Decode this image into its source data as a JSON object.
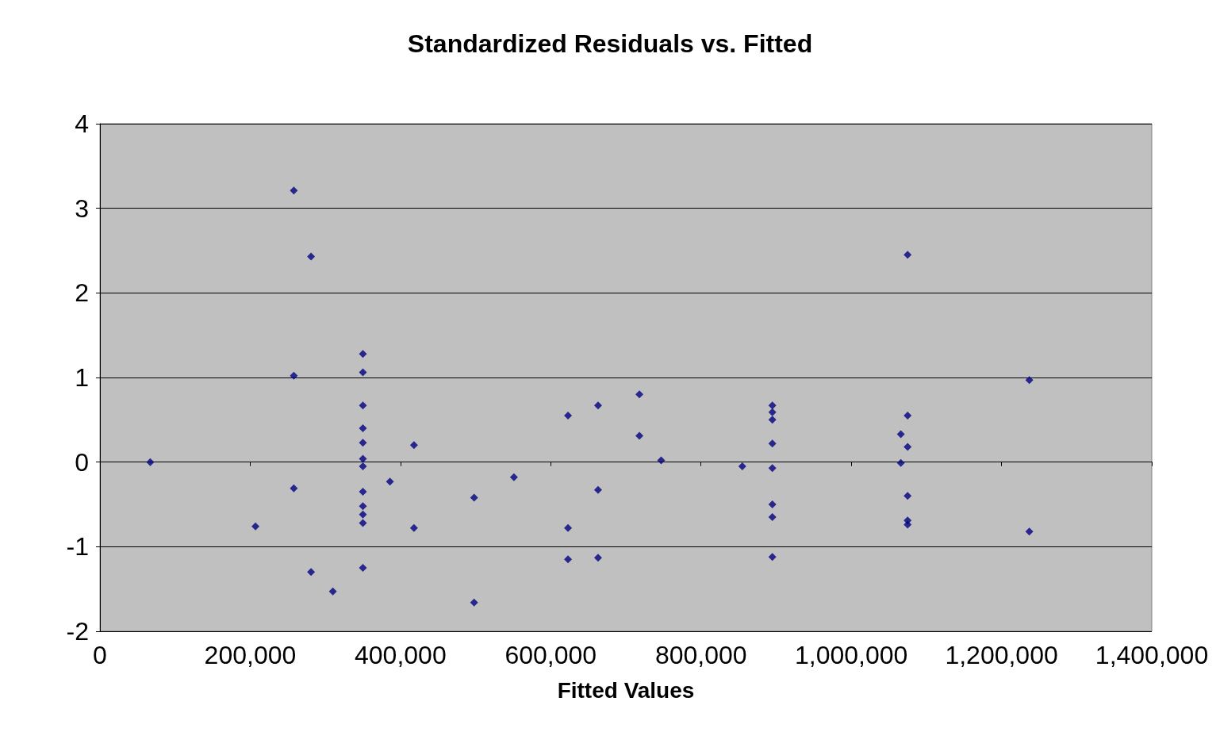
{
  "chart_data": {
    "type": "scatter",
    "title": "Standardized Residuals vs. Fitted",
    "xlabel": "Fitted Values",
    "x": [
      67000,
      207000,
      258000,
      258000,
      258000,
      281000,
      281000,
      310000,
      350000,
      350000,
      350000,
      350000,
      350000,
      350000,
      350000,
      350000,
      350000,
      350000,
      350000,
      350000,
      386000,
      418000,
      418000,
      498000,
      498000,
      551000,
      623000,
      623000,
      623000,
      663000,
      663000,
      663000,
      718000,
      718000,
      747000,
      855000,
      895000,
      895000,
      895000,
      895000,
      895000,
      895000,
      895000,
      895000,
      1066000,
      1066000,
      1075000,
      1075000,
      1075000,
      1075000,
      1075000,
      1075000,
      1237000,
      1237000
    ],
    "values": [
      0,
      -0.76,
      3.21,
      1.02,
      -0.31,
      2.43,
      -1.3,
      -1.53,
      1.28,
      1.06,
      0.67,
      0.4,
      0.23,
      0.04,
      -0.05,
      -0.35,
      -0.52,
      -0.62,
      -0.72,
      -1.25,
      -0.23,
      0.2,
      -0.78,
      -0.42,
      -1.66,
      -0.18,
      0.55,
      -0.78,
      -1.15,
      0.67,
      -0.33,
      -1.13,
      0.8,
      0.31,
      0.02,
      -0.05,
      0.67,
      0.59,
      0.5,
      0.22,
      -0.07,
      -0.5,
      -0.65,
      -1.12,
      0.33,
      -0.01,
      2.45,
      0.55,
      0.18,
      -0.4,
      -0.69,
      -0.74,
      0.97,
      -0.82
    ],
    "color": "#000080",
    "marker": "diamond",
    "xlim": [
      0,
      1400000
    ],
    "xticks": [
      0,
      {
        "value": 200000,
        "label": "200,000"
      },
      {
        "value": 400000,
        "label": "400,000"
      },
      {
        "value": 600000,
        "label": "600,000"
      },
      {
        "value": 800000,
        "label": "800,000"
      },
      {
        "value": 1000000,
        "label": "1,000,000"
      },
      {
        "value": 1200000,
        "label": "1,200,000"
      },
      {
        "value": 1400000,
        "label": "1,400,000"
      }
    ],
    "ylim": [
      -2,
      4
    ],
    "yticks": [
      -2,
      -1,
      0,
      1,
      2,
      3,
      4
    ],
    "grid": "y"
  }
}
